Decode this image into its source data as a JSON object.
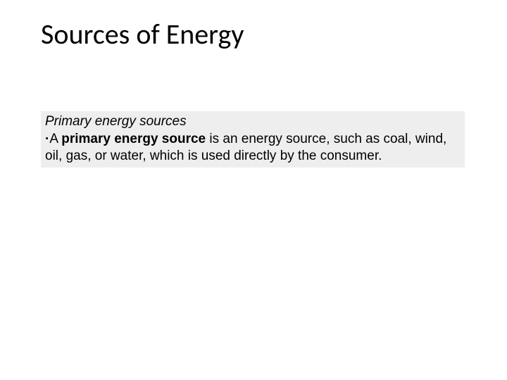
{
  "slide": {
    "title": "Sources of Energy",
    "section_header": "Primary energy sources",
    "bullet_symbol": "·",
    "bold_term": "primary energy source ",
    "definition_continuation": "is an energy source, such as coal, wind, oil, gas, or water, which is used directly by the consumer.",
    "article": "A "
  },
  "styling": {
    "background_color": "#ffffff",
    "content_box_bg": "#eeeeee",
    "title_fontsize": 40,
    "title_color": "#000000",
    "body_fontsize": 19,
    "body_color": "#000000"
  }
}
